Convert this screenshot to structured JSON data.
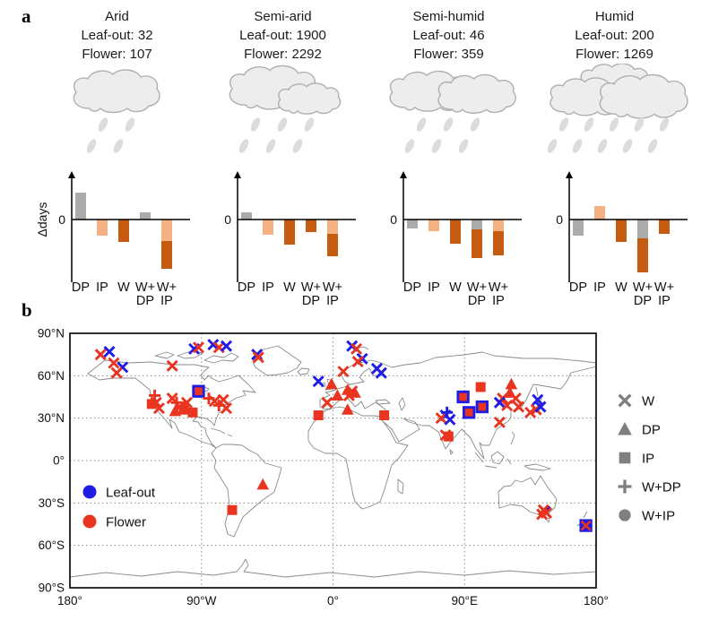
{
  "panel_a": {
    "label": "a",
    "ylabel": "Δdays",
    "zero_label": "0",
    "x_labels": [
      [
        "DP"
      ],
      [
        "IP"
      ],
      [
        "W"
      ],
      [
        "W+",
        "DP"
      ],
      [
        "W+",
        "IP"
      ]
    ],
    "bar_colors": {
      "gray": "#ABABAB",
      "light": "#F4B183",
      "dark": "#C55A11"
    },
    "cloud_fill": "#EDEDED",
    "cloud_stroke": "#AFAFAF",
    "rain_color": "#DCDCDC"
  },
  "chart_data": [
    {
      "type": "bar",
      "title": "Arid",
      "leaf_line": "Leaf-out: 32",
      "flower_line": "Flower: 107",
      "categories": [
        "DP",
        "IP",
        "W",
        "W+DP",
        "W+IP"
      ],
      "ylabel": "Δdays",
      "units": "relative",
      "clouds": 1,
      "rain_columns": 2,
      "bars": [
        [
          [
            "gray",
            30
          ]
        ],
        [
          [
            "light",
            -18
          ]
        ],
        [
          [
            "dark",
            -25
          ]
        ],
        [
          [
            "gray",
            8
          ]
        ],
        [
          [
            "light",
            -24
          ],
          [
            "dark",
            -31
          ]
        ]
      ]
    },
    {
      "type": "bar",
      "title": "Semi-arid",
      "leaf_line": "Leaf-out: 1900",
      "flower_line": "Flower: 2292",
      "categories": [
        "DP",
        "IP",
        "W",
        "W+DP",
        "W+IP"
      ],
      "units": "relative",
      "clouds": 2,
      "rain_columns": 3,
      "bars": [
        [
          [
            "gray",
            8
          ]
        ],
        [
          [
            "light",
            -17
          ]
        ],
        [
          [
            "dark",
            -28
          ]
        ],
        [
          [
            "dark",
            -14
          ]
        ],
        [
          [
            "light",
            -16
          ],
          [
            "dark",
            -25
          ]
        ]
      ]
    },
    {
      "type": "bar",
      "title": "Semi-humid",
      "leaf_line": "Leaf-out: 46",
      "flower_line": "Flower: 359",
      "categories": [
        "DP",
        "IP",
        "W",
        "W+DP",
        "W+IP"
      ],
      "units": "relative",
      "clouds": 2,
      "rain_columns": 3,
      "bars": [
        [
          [
            "gray",
            -10
          ]
        ],
        [
          [
            "light",
            -13
          ]
        ],
        [
          [
            "dark",
            -27
          ]
        ],
        [
          [
            "gray",
            -11
          ],
          [
            "dark",
            -32
          ]
        ],
        [
          [
            "light",
            -13
          ],
          [
            "dark",
            -27
          ]
        ]
      ]
    },
    {
      "type": "bar",
      "title": "Humid",
      "leaf_line": "Leaf-out: 200",
      "flower_line": "Flower: 1269",
      "categories": [
        "DP",
        "IP",
        "W",
        "W+DP",
        "W+IP"
      ],
      "units": "relative",
      "clouds": 3,
      "rain_columns": 5,
      "bars": [
        [
          [
            "gray",
            -18
          ]
        ],
        [
          [
            "light",
            15
          ]
        ],
        [
          [
            "dark",
            -25
          ]
        ],
        [
          [
            "gray",
            -21
          ],
          [
            "dark",
            -38
          ]
        ],
        [
          [
            "dark",
            -16
          ]
        ]
      ]
    },
    {
      "type": "scatter",
      "title": "Global site map",
      "x_range": [
        -180,
        180
      ],
      "y_range": [
        -90,
        90
      ],
      "x_ticks": [
        "180°",
        "90°W",
        "0°",
        "90°E",
        "180°"
      ],
      "y_ticks": [
        "90°N",
        "60°N",
        "30°N",
        "0°",
        "30°S",
        "60°S",
        "90°S"
      ],
      "points": [
        {
          "p": "F",
          "d": "W",
          "lon": -159,
          "lat": 75
        },
        {
          "p": "L",
          "d": "W",
          "lon": -153,
          "lat": 77
        },
        {
          "p": "F",
          "d": "W",
          "lon": -150,
          "lat": 69
        },
        {
          "p": "L",
          "d": "W",
          "lon": -144,
          "lat": 66
        },
        {
          "p": "F",
          "d": "W",
          "lon": -148,
          "lat": 62
        },
        {
          "p": "L",
          "d": "W",
          "lon": -95,
          "lat": 79
        },
        {
          "p": "F",
          "d": "W",
          "lon": -92,
          "lat": 80
        },
        {
          "p": "L",
          "d": "W",
          "lon": -82,
          "lat": 82
        },
        {
          "p": "F",
          "d": "W",
          "lon": -78,
          "lat": 80
        },
        {
          "p": "L",
          "d": "W",
          "lon": -73,
          "lat": 81
        },
        {
          "p": "L",
          "d": "W",
          "lon": -52,
          "lat": 75
        },
        {
          "p": "F",
          "d": "W",
          "lon": -51,
          "lat": 73
        },
        {
          "p": "F",
          "d": "W",
          "lon": -110,
          "lat": 67
        },
        {
          "p": "F",
          "d": "W+DP",
          "lon": -122,
          "lat": 46
        },
        {
          "p": "F",
          "d": "W",
          "lon": -121,
          "lat": 41
        },
        {
          "p": "F",
          "d": "IP",
          "lon": -124,
          "lat": 40
        },
        {
          "p": "F",
          "d": "W",
          "lon": -119,
          "lat": 37
        },
        {
          "p": "F",
          "d": "W",
          "lon": -110,
          "lat": 44
        },
        {
          "p": "F",
          "d": "W+DP",
          "lon": -107,
          "lat": 41
        },
        {
          "p": "F",
          "d": "W",
          "lon": -105,
          "lat": 38
        },
        {
          "p": "F",
          "d": "IP",
          "lon": -102,
          "lat": 36
        },
        {
          "p": "F",
          "d": "W",
          "lon": -100,
          "lat": 41
        },
        {
          "p": "F",
          "d": "DP",
          "lon": -108,
          "lat": 35
        },
        {
          "p": "F",
          "d": "IP",
          "lon": -96,
          "lat": 34
        },
        {
          "p": "L",
          "d": "IP",
          "lon": -92,
          "lat": 49,
          "s": 1.3
        },
        {
          "p": "F",
          "d": "IP",
          "lon": -92,
          "lat": 49,
          "s": 0.78
        },
        {
          "p": "F",
          "d": "W+DP",
          "lon": -85,
          "lat": 44
        },
        {
          "p": "F",
          "d": "W",
          "lon": -81,
          "lat": 42
        },
        {
          "p": "F",
          "d": "W+DP",
          "lon": -78,
          "lat": 39
        },
        {
          "p": "F",
          "d": "W",
          "lon": -75,
          "lat": 43
        },
        {
          "p": "F",
          "d": "W",
          "lon": -73,
          "lat": 37
        },
        {
          "p": "L",
          "d": "W",
          "lon": 13,
          "lat": 81
        },
        {
          "p": "F",
          "d": "W",
          "lon": 16,
          "lat": 79
        },
        {
          "p": "L",
          "d": "W",
          "lon": 20,
          "lat": 72
        },
        {
          "p": "F",
          "d": "W",
          "lon": 17,
          "lat": 70
        },
        {
          "p": "F",
          "d": "W",
          "lon": 7,
          "lat": 63
        },
        {
          "p": "L",
          "d": "W",
          "lon": 30,
          "lat": 65
        },
        {
          "p": "L",
          "d": "W",
          "lon": 33,
          "lat": 62
        },
        {
          "p": "L",
          "d": "W",
          "lon": -10,
          "lat": 56
        },
        {
          "p": "F",
          "d": "DP",
          "lon": -1,
          "lat": 54
        },
        {
          "p": "F",
          "d": "DP",
          "lon": 10,
          "lat": 50
        },
        {
          "p": "F",
          "d": "W",
          "lon": 13,
          "lat": 49
        },
        {
          "p": "F",
          "d": "DP",
          "lon": 15,
          "lat": 48
        },
        {
          "p": "F",
          "d": "W",
          "lon": 11,
          "lat": 46
        },
        {
          "p": "F",
          "d": "DP",
          "lon": 3,
          "lat": 46
        },
        {
          "p": "F",
          "d": "W",
          "lon": -4,
          "lat": 41
        },
        {
          "p": "F",
          "d": "DP",
          "lon": 10,
          "lat": 36
        },
        {
          "p": "F",
          "d": "IP",
          "lon": -10,
          "lat": 32
        },
        {
          "p": "F",
          "d": "IP",
          "lon": 35,
          "lat": 32
        },
        {
          "p": "F",
          "d": "IP",
          "lon": 101,
          "lat": 52
        },
        {
          "p": "L",
          "d": "IP",
          "lon": 89,
          "lat": 45,
          "s": 1.3
        },
        {
          "p": "F",
          "d": "IP",
          "lon": 89,
          "lat": 45,
          "s": 0.78
        },
        {
          "p": "F",
          "d": "DP",
          "lon": 122,
          "lat": 54
        },
        {
          "p": "L",
          "d": "IP",
          "lon": 102,
          "lat": 38,
          "s": 1.3
        },
        {
          "p": "F",
          "d": "IP",
          "lon": 102,
          "lat": 38,
          "s": 0.78
        },
        {
          "p": "L",
          "d": "IP",
          "lon": 93,
          "lat": 34,
          "s": 1.3
        },
        {
          "p": "F",
          "d": "IP",
          "lon": 93,
          "lat": 34,
          "s": 0.78
        },
        {
          "p": "L",
          "d": "W",
          "lon": 77,
          "lat": 32
        },
        {
          "p": "F",
          "d": "W",
          "lon": 74,
          "lat": 30
        },
        {
          "p": "L",
          "d": "W",
          "lon": 80,
          "lat": 29
        },
        {
          "p": "L",
          "d": "W+DP",
          "lon": 78,
          "lat": 34
        },
        {
          "p": "F",
          "d": "W",
          "lon": 77,
          "lat": 18
        },
        {
          "p": "F",
          "d": "IP",
          "lon": 79,
          "lat": 17
        },
        {
          "p": "F",
          "d": "DP",
          "lon": 121,
          "lat": 48
        },
        {
          "p": "F",
          "d": "W",
          "lon": 116,
          "lat": 44
        },
        {
          "p": "F",
          "d": "W",
          "lon": 125,
          "lat": 44
        },
        {
          "p": "L",
          "d": "W",
          "lon": 114,
          "lat": 41
        },
        {
          "p": "F",
          "d": "W",
          "lon": 119,
          "lat": 39
        },
        {
          "p": "F",
          "d": "W",
          "lon": 127,
          "lat": 38
        },
        {
          "p": "F",
          "d": "W",
          "lon": 114,
          "lat": 27
        },
        {
          "p": "L",
          "d": "W",
          "lon": 140,
          "lat": 43
        },
        {
          "p": "F",
          "d": "W",
          "lon": 139,
          "lat": 36
        },
        {
          "p": "F",
          "d": "W",
          "lon": 135,
          "lat": 34
        },
        {
          "p": "L",
          "d": "W",
          "lon": 142,
          "lat": 38
        },
        {
          "p": "F",
          "d": "DP",
          "lon": -48,
          "lat": -17
        },
        {
          "p": "F",
          "d": "IP",
          "lon": -69,
          "lat": -35
        },
        {
          "p": "L",
          "d": "W",
          "lon": 145,
          "lat": -36
        },
        {
          "p": "F",
          "d": "W",
          "lon": 144,
          "lat": -35
        },
        {
          "p": "F",
          "d": "W",
          "lon": 146,
          "lat": -37
        },
        {
          "p": "F",
          "d": "W",
          "lon": 143,
          "lat": -38
        },
        {
          "p": "L",
          "d": "IP",
          "lon": 173,
          "lat": -46,
          "s": 1.3
        },
        {
          "p": "F",
          "d": "W",
          "lon": 173,
          "lat": -46,
          "s": 0.9
        }
      ]
    }
  ],
  "panel_b": {
    "label": "b",
    "phase_colors": {
      "L": "#1F1CE6",
      "F": "#E9341F"
    },
    "phase_legend": [
      {
        "label": "Leaf-out",
        "color": "#1F1CE6"
      },
      {
        "label": "Flower",
        "color": "#E9341F"
      }
    ],
    "driver_legend": [
      {
        "label": "W",
        "shape": "x"
      },
      {
        "label": "DP",
        "shape": "triangle"
      },
      {
        "label": "IP",
        "shape": "square"
      },
      {
        "label": "W+DP",
        "shape": "plus"
      },
      {
        "label": "W+IP",
        "shape": "circle"
      }
    ],
    "legend_gray": "#7F7F7F",
    "coast_color": "#8A8A8A"
  }
}
